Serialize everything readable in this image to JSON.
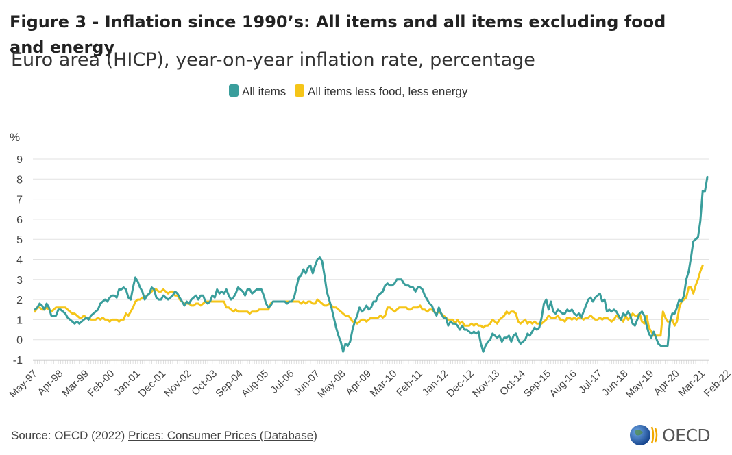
{
  "chart_data": {
    "type": "line",
    "title": "Figure 3 - Inflation since 1990’s: All items and all items excluding food and energy",
    "subtitle": "Euro area (HICP), year-on-year inflation rate, percentage",
    "ylabel": "%",
    "ylim": [
      -1,
      9
    ],
    "yticks": [
      "9",
      "8",
      "7",
      "6",
      "5",
      "4",
      "3",
      "2",
      "1",
      "0",
      "-1"
    ],
    "xticks": [
      "May-97",
      "Apr-98",
      "Mar-99",
      "Feb-00",
      "Jan-01",
      "Dec-01",
      "Nov-02",
      "Oct-03",
      "Sep-04",
      "Aug-05",
      "Jul-06",
      "Jun-07",
      "May-08",
      "Apr-09",
      "Mar-10",
      "Feb-11",
      "Jan-12",
      "Dec-12",
      "Nov-13",
      "Oct-14",
      "Sep-15",
      "Aug-16",
      "Jul-17",
      "Jun-18",
      "May-19",
      "Apr-20",
      "Mar-21",
      "Feb-22"
    ],
    "x_range": [
      "May-97",
      "Jun-22"
    ],
    "legend_position": "top-center",
    "series": [
      {
        "name": "All items",
        "color": "#3a9e9c",
        "values": [
          1.5,
          1.6,
          1.8,
          1.7,
          1.5,
          1.8,
          1.6,
          1.2,
          1.2,
          1.2,
          1.5,
          1.5,
          1.4,
          1.3,
          1.1,
          1.0,
          0.9,
          0.8,
          0.9,
          0.8,
          0.9,
          1.0,
          1.1,
          1.0,
          1.2,
          1.3,
          1.4,
          1.5,
          1.8,
          1.9,
          2.0,
          1.9,
          2.1,
          2.2,
          2.2,
          2.1,
          2.5,
          2.5,
          2.6,
          2.5,
          2.1,
          2.0,
          2.6,
          3.1,
          2.9,
          2.6,
          2.4,
          2.0,
          2.2,
          2.3,
          2.6,
          2.5,
          2.1,
          2.0,
          2.0,
          2.2,
          2.1,
          2.0,
          2.1,
          2.2,
          2.4,
          2.3,
          2.1,
          1.9,
          1.7,
          1.9,
          1.8,
          2.0,
          2.1,
          2.2,
          2.0,
          2.2,
          2.2,
          1.9,
          1.8,
          1.9,
          2.2,
          2.1,
          2.5,
          2.3,
          2.4,
          2.3,
          2.5,
          2.2,
          2.0,
          2.1,
          2.3,
          2.6,
          2.5,
          2.4,
          2.2,
          2.5,
          2.5,
          2.3,
          2.4,
          2.5,
          2.5,
          2.5,
          2.2,
          1.8,
          1.6,
          1.7,
          1.9,
          1.9,
          1.9,
          1.9,
          1.9,
          1.9,
          1.8,
          1.9,
          1.9,
          2.1,
          2.6,
          3.1,
          3.2,
          3.5,
          3.3,
          3.6,
          3.7,
          3.3,
          3.7,
          4.0,
          4.1,
          3.9,
          3.2,
          2.4,
          2.0,
          1.6,
          1.1,
          0.6,
          0.2,
          -0.1,
          -0.6,
          -0.2,
          -0.3,
          -0.1,
          0.5,
          0.9,
          1.2,
          1.6,
          1.4,
          1.5,
          1.7,
          1.5,
          1.6,
          1.9,
          1.9,
          2.2,
          2.3,
          2.4,
          2.7,
          2.8,
          2.7,
          2.7,
          2.8,
          3.0,
          3.0,
          3.0,
          2.8,
          2.7,
          2.7,
          2.6,
          2.6,
          2.4,
          2.6,
          2.6,
          2.5,
          2.2,
          2.0,
          1.8,
          1.7,
          1.4,
          1.2,
          1.6,
          1.3,
          1.1,
          1.1,
          0.7,
          0.9,
          0.8,
          0.8,
          0.7,
          0.5,
          0.7,
          0.5,
          0.5,
          0.4,
          0.3,
          0.4,
          0.3,
          0.4,
          -0.2,
          -0.6,
          -0.3,
          -0.1,
          0.0,
          0.3,
          0.2,
          0.1,
          0.2,
          -0.1,
          0.1,
          0.1,
          0.2,
          -0.1,
          0.2,
          0.3,
          0.0,
          -0.2,
          -0.1,
          0.0,
          0.3,
          0.2,
          0.4,
          0.6,
          0.5,
          0.6,
          1.1,
          1.8,
          2.0,
          1.5,
          1.9,
          1.4,
          1.3,
          1.5,
          1.4,
          1.3,
          1.3,
          1.5,
          1.4,
          1.5,
          1.3,
          1.2,
          1.3,
          1.1,
          1.4,
          1.7,
          2.0,
          2.1,
          1.9,
          2.1,
          2.2,
          2.3,
          1.9,
          2.0,
          1.4,
          1.5,
          1.4,
          1.5,
          1.4,
          1.2,
          1.0,
          1.3,
          1.2,
          1.4,
          1.2,
          0.8,
          0.7,
          1.0,
          1.3,
          1.4,
          1.2,
          0.7,
          0.3,
          0.1,
          0.4,
          0.1,
          -0.2,
          -0.3,
          -0.3,
          -0.3,
          -0.3,
          0.9,
          1.3,
          1.3,
          1.6,
          2.0,
          1.9,
          2.2,
          3.0,
          3.4,
          4.1,
          4.9,
          5.0,
          5.1,
          5.9,
          7.4,
          7.4,
          8.1
        ]
      },
      {
        "name": "All items less food, less energy",
        "color": "#f5c518",
        "values": [
          1.4,
          1.6,
          1.6,
          1.5,
          1.5,
          1.6,
          1.5,
          1.4,
          1.5,
          1.6,
          1.6,
          1.6,
          1.6,
          1.6,
          1.5,
          1.4,
          1.3,
          1.3,
          1.2,
          1.1,
          1.1,
          1.2,
          1.1,
          1.1,
          1.0,
          1.0,
          1.0,
          1.1,
          1.0,
          1.1,
          1.0,
          1.0,
          0.9,
          1.0,
          1.0,
          1.0,
          0.9,
          1.0,
          1.0,
          1.3,
          1.2,
          1.4,
          1.6,
          1.9,
          2.0,
          2.0,
          2.1,
          2.1,
          2.2,
          2.3,
          2.4,
          2.5,
          2.5,
          2.4,
          2.4,
          2.5,
          2.4,
          2.3,
          2.4,
          2.4,
          2.2,
          2.2,
          2.0,
          1.9,
          1.8,
          1.8,
          1.8,
          1.7,
          1.7,
          1.8,
          1.8,
          1.7,
          1.8,
          1.9,
          1.9,
          1.9,
          1.9,
          1.9,
          1.9,
          1.9,
          1.9,
          1.9,
          1.6,
          1.6,
          1.5,
          1.4,
          1.5,
          1.4,
          1.4,
          1.4,
          1.4,
          1.4,
          1.3,
          1.4,
          1.4,
          1.4,
          1.5,
          1.5,
          1.5,
          1.5,
          1.5,
          1.8,
          1.9,
          1.9,
          1.9,
          1.9,
          1.9,
          1.9,
          1.9,
          1.9,
          1.9,
          1.9,
          1.9,
          1.9,
          1.8,
          1.9,
          1.8,
          1.9,
          1.9,
          1.8,
          1.8,
          2.0,
          1.9,
          1.8,
          1.7,
          1.7,
          1.8,
          1.7,
          1.6,
          1.6,
          1.5,
          1.4,
          1.3,
          1.2,
          1.2,
          1.1,
          0.9,
          0.9,
          0.8,
          0.9,
          1.0,
          1.0,
          0.9,
          1.0,
          1.1,
          1.1,
          1.1,
          1.1,
          1.2,
          1.1,
          1.2,
          1.6,
          1.6,
          1.5,
          1.4,
          1.5,
          1.6,
          1.6,
          1.6,
          1.6,
          1.5,
          1.5,
          1.6,
          1.6,
          1.6,
          1.7,
          1.5,
          1.5,
          1.4,
          1.5,
          1.5,
          1.4,
          1.3,
          1.4,
          1.3,
          1.2,
          1.1,
          1.0,
          1.0,
          1.0,
          0.8,
          1.0,
          0.8,
          0.9,
          0.7,
          0.7,
          0.7,
          0.8,
          0.7,
          0.8,
          0.7,
          0.7,
          0.6,
          0.7,
          0.7,
          0.8,
          1.0,
          0.9,
          0.8,
          1.0,
          1.1,
          1.2,
          1.4,
          1.3,
          1.4,
          1.4,
          1.3,
          0.9,
          0.8,
          0.9,
          1.0,
          0.8,
          0.9,
          0.8,
          0.9,
          0.8,
          0.8,
          0.8,
          0.9,
          1.0,
          1.2,
          1.1,
          1.1,
          1.1,
          1.2,
          1.0,
          1.0,
          0.9,
          1.1,
          1.1,
          1.0,
          1.1,
          1.0,
          1.1,
          1.1,
          1.0,
          1.1,
          1.1,
          1.2,
          1.1,
          1.0,
          1.0,
          1.1,
          1.0,
          1.1,
          1.1,
          1.0,
          0.9,
          1.0,
          1.2,
          1.1,
          1.0,
          0.9,
          1.2,
          1.0,
          1.1,
          1.3,
          1.2,
          1.2,
          1.3,
          0.9,
          0.8,
          1.2,
          0.6,
          0.4,
          0.2,
          0.2,
          0.2,
          0.2,
          1.4,
          1.1,
          0.9,
          0.9,
          1.0,
          0.7,
          0.9,
          1.6,
          1.9,
          2.0,
          2.1,
          2.6,
          2.6,
          2.3,
          2.7,
          3.0,
          3.4,
          3.7
        ]
      }
    ]
  },
  "footer": {
    "source_prefix": "Source: OECD (2022) ",
    "source_link": "Prices: Consumer Prices (Database)"
  },
  "logo": {
    "text": "OECD",
    "globe_color": "#1f5fa8",
    "stripe_color": "#f2a900"
  }
}
